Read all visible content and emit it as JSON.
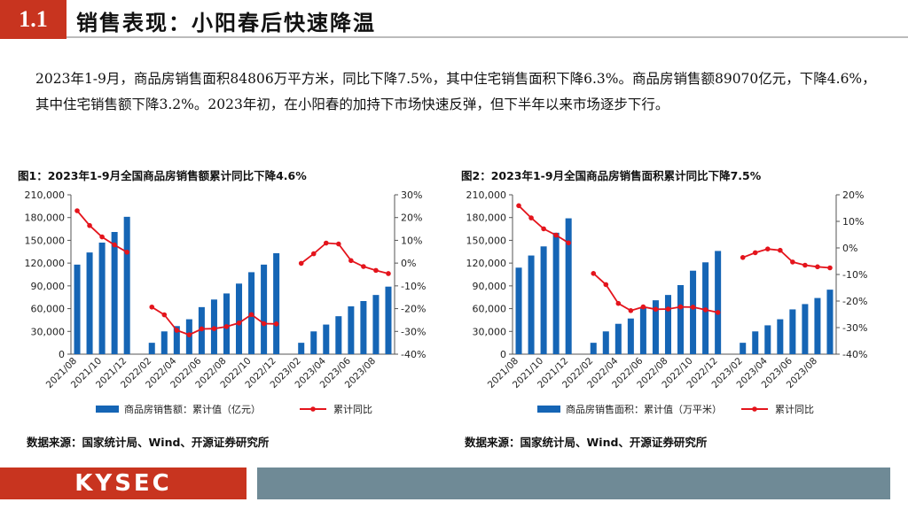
{
  "header": {
    "section_number": "1.1",
    "title": "销售表现：小阳春后快速降温"
  },
  "summary": {
    "paragraph": "2023年1-9月，商品房销售面积84806万平方米，同比下降7.5%，其中住宅销售面积下降6.3%。商品房销售额89070亿元，下降4.6%，其中住宅销售额下降3.2%。2023年初，在小阳春的加持下市场快速反弹，但下半年以来市场逐步下行。"
  },
  "figures": [
    {
      "title": "图1：2023年1-9月全国商品房销售额累计同比下降4.6%",
      "source": "数据来源：国家统计局、Wind、开源证券研究所"
    },
    {
      "title": "图2：2023年1-9月全国商品房销售面积累计同比下降7.5%",
      "source": "数据来源：国家统计局、Wind、开源证券研究所"
    }
  ],
  "footer": {
    "logo": "KYSEC"
  },
  "colors": {
    "accent": "#c8341f",
    "bar": "#1565b5",
    "line": "#e4141c",
    "footer_grey": "#6f8a96"
  },
  "chart_data": [
    {
      "type": "bar",
      "title": "图1：2023年1-9月全国商品房销售额累计同比下降4.6%",
      "categories": [
        "2021/08",
        "2021/09",
        "2021/10",
        "2021/11",
        "2021/12",
        "2022/01",
        "2022/02",
        "2022/03",
        "2022/04",
        "2022/05",
        "2022/06",
        "2022/07",
        "2022/08",
        "2022/09",
        "2022/10",
        "2022/11",
        "2022/12",
        "2023/01",
        "2023/02",
        "2023/03",
        "2023/04",
        "2023/05",
        "2023/06",
        "2023/07",
        "2023/08",
        "2023/09"
      ],
      "tick_labels": [
        "2021/08",
        "2021/10",
        "2021/12",
        "2022/02",
        "2022/04",
        "2022/06",
        "2022/08",
        "2022/10",
        "2022/12",
        "2023/02",
        "2023/04",
        "2023/06",
        "2023/08"
      ],
      "series": [
        {
          "name": "商品房销售额：累计值（亿元）",
          "kind": "bar",
          "axis": "left",
          "values": [
            118000,
            134000,
            147000,
            161000,
            181000,
            null,
            15000,
            30000,
            37000,
            46000,
            62000,
            72000,
            80000,
            93000,
            108000,
            118000,
            133000,
            null,
            15000,
            30000,
            39000,
            50000,
            63000,
            70000,
            78000,
            89000
          ]
        },
        {
          "name": "累计同比",
          "kind": "line",
          "axis": "right",
          "values": [
            23,
            16.5,
            11.5,
            8,
            4.8,
            null,
            -19.3,
            -22.7,
            -29.5,
            -31.5,
            -28.9,
            -28.8,
            -27.9,
            -26.3,
            -22.6,
            -26.6,
            -26.7,
            null,
            -0.1,
            4.1,
            8.8,
            8.4,
            1.1,
            -1.5,
            -3.2,
            -4.6
          ]
        }
      ],
      "ylim_left": [
        0,
        210000
      ],
      "yticks_left": [
        "0",
        "30,000",
        "60,000",
        "90,000",
        "120,000",
        "150,000",
        "180,000",
        "210,000"
      ],
      "ylim_right": [
        -40,
        30
      ],
      "yticks_right": [
        "-40%",
        "-30%",
        "-20%",
        "-10%",
        "0%",
        "10%",
        "20%",
        "30%"
      ],
      "legend": [
        "商品房销售额：累计值（亿元）",
        "累计同比"
      ]
    },
    {
      "type": "bar",
      "title": "图2：2023年1-9月全国商品房销售面积累计同比下降7.5%",
      "categories": [
        "2021/08",
        "2021/09",
        "2021/10",
        "2021/11",
        "2021/12",
        "2022/01",
        "2022/02",
        "2022/03",
        "2022/04",
        "2022/05",
        "2022/06",
        "2022/07",
        "2022/08",
        "2022/09",
        "2022/10",
        "2022/11",
        "2022/12",
        "2023/01",
        "2023/02",
        "2023/03",
        "2023/04",
        "2023/05",
        "2023/06",
        "2023/07",
        "2023/08",
        "2023/09"
      ],
      "tick_labels": [
        "2021/08",
        "2021/10",
        "2021/12",
        "2022/02",
        "2022/04",
        "2022/06",
        "2022/08",
        "2022/10",
        "2022/12",
        "2023/02",
        "2023/04",
        "2023/06",
        "2023/08"
      ],
      "series": [
        {
          "name": "商品房销售面积：累计值（万平米）",
          "kind": "bar",
          "axis": "left",
          "values": [
            114000,
            130000,
            142000,
            160000,
            179000,
            null,
            15000,
            30000,
            40000,
            47000,
            62000,
            71000,
            78000,
            91000,
            110000,
            121000,
            136000,
            null,
            15000,
            30000,
            38000,
            46000,
            59000,
            66000,
            74000,
            85000
          ]
        },
        {
          "name": "累计同比",
          "kind": "line",
          "axis": "right",
          "values": [
            15.9,
            11.3,
            7.2,
            4.8,
            1.9,
            null,
            -9.6,
            -13.8,
            -20.9,
            -23.6,
            -22.2,
            -23.1,
            -23,
            -22.2,
            -22.3,
            -23.3,
            -24.3,
            null,
            -3.6,
            -1.8,
            -0.4,
            -0.9,
            -5.3,
            -6.5,
            -7.1,
            -7.5
          ]
        }
      ],
      "ylim_left": [
        0,
        210000
      ],
      "yticks_left": [
        "0",
        "30,000",
        "60,000",
        "90,000",
        "120,000",
        "150,000",
        "180,000",
        "210,000"
      ],
      "ylim_right": [
        -40,
        20
      ],
      "yticks_right": [
        "-40%",
        "-30%",
        "-20%",
        "-10%",
        "0%",
        "10%",
        "20%"
      ],
      "legend": [
        "商品房销售面积：累计值（万平米）",
        "累计同比"
      ]
    }
  ]
}
